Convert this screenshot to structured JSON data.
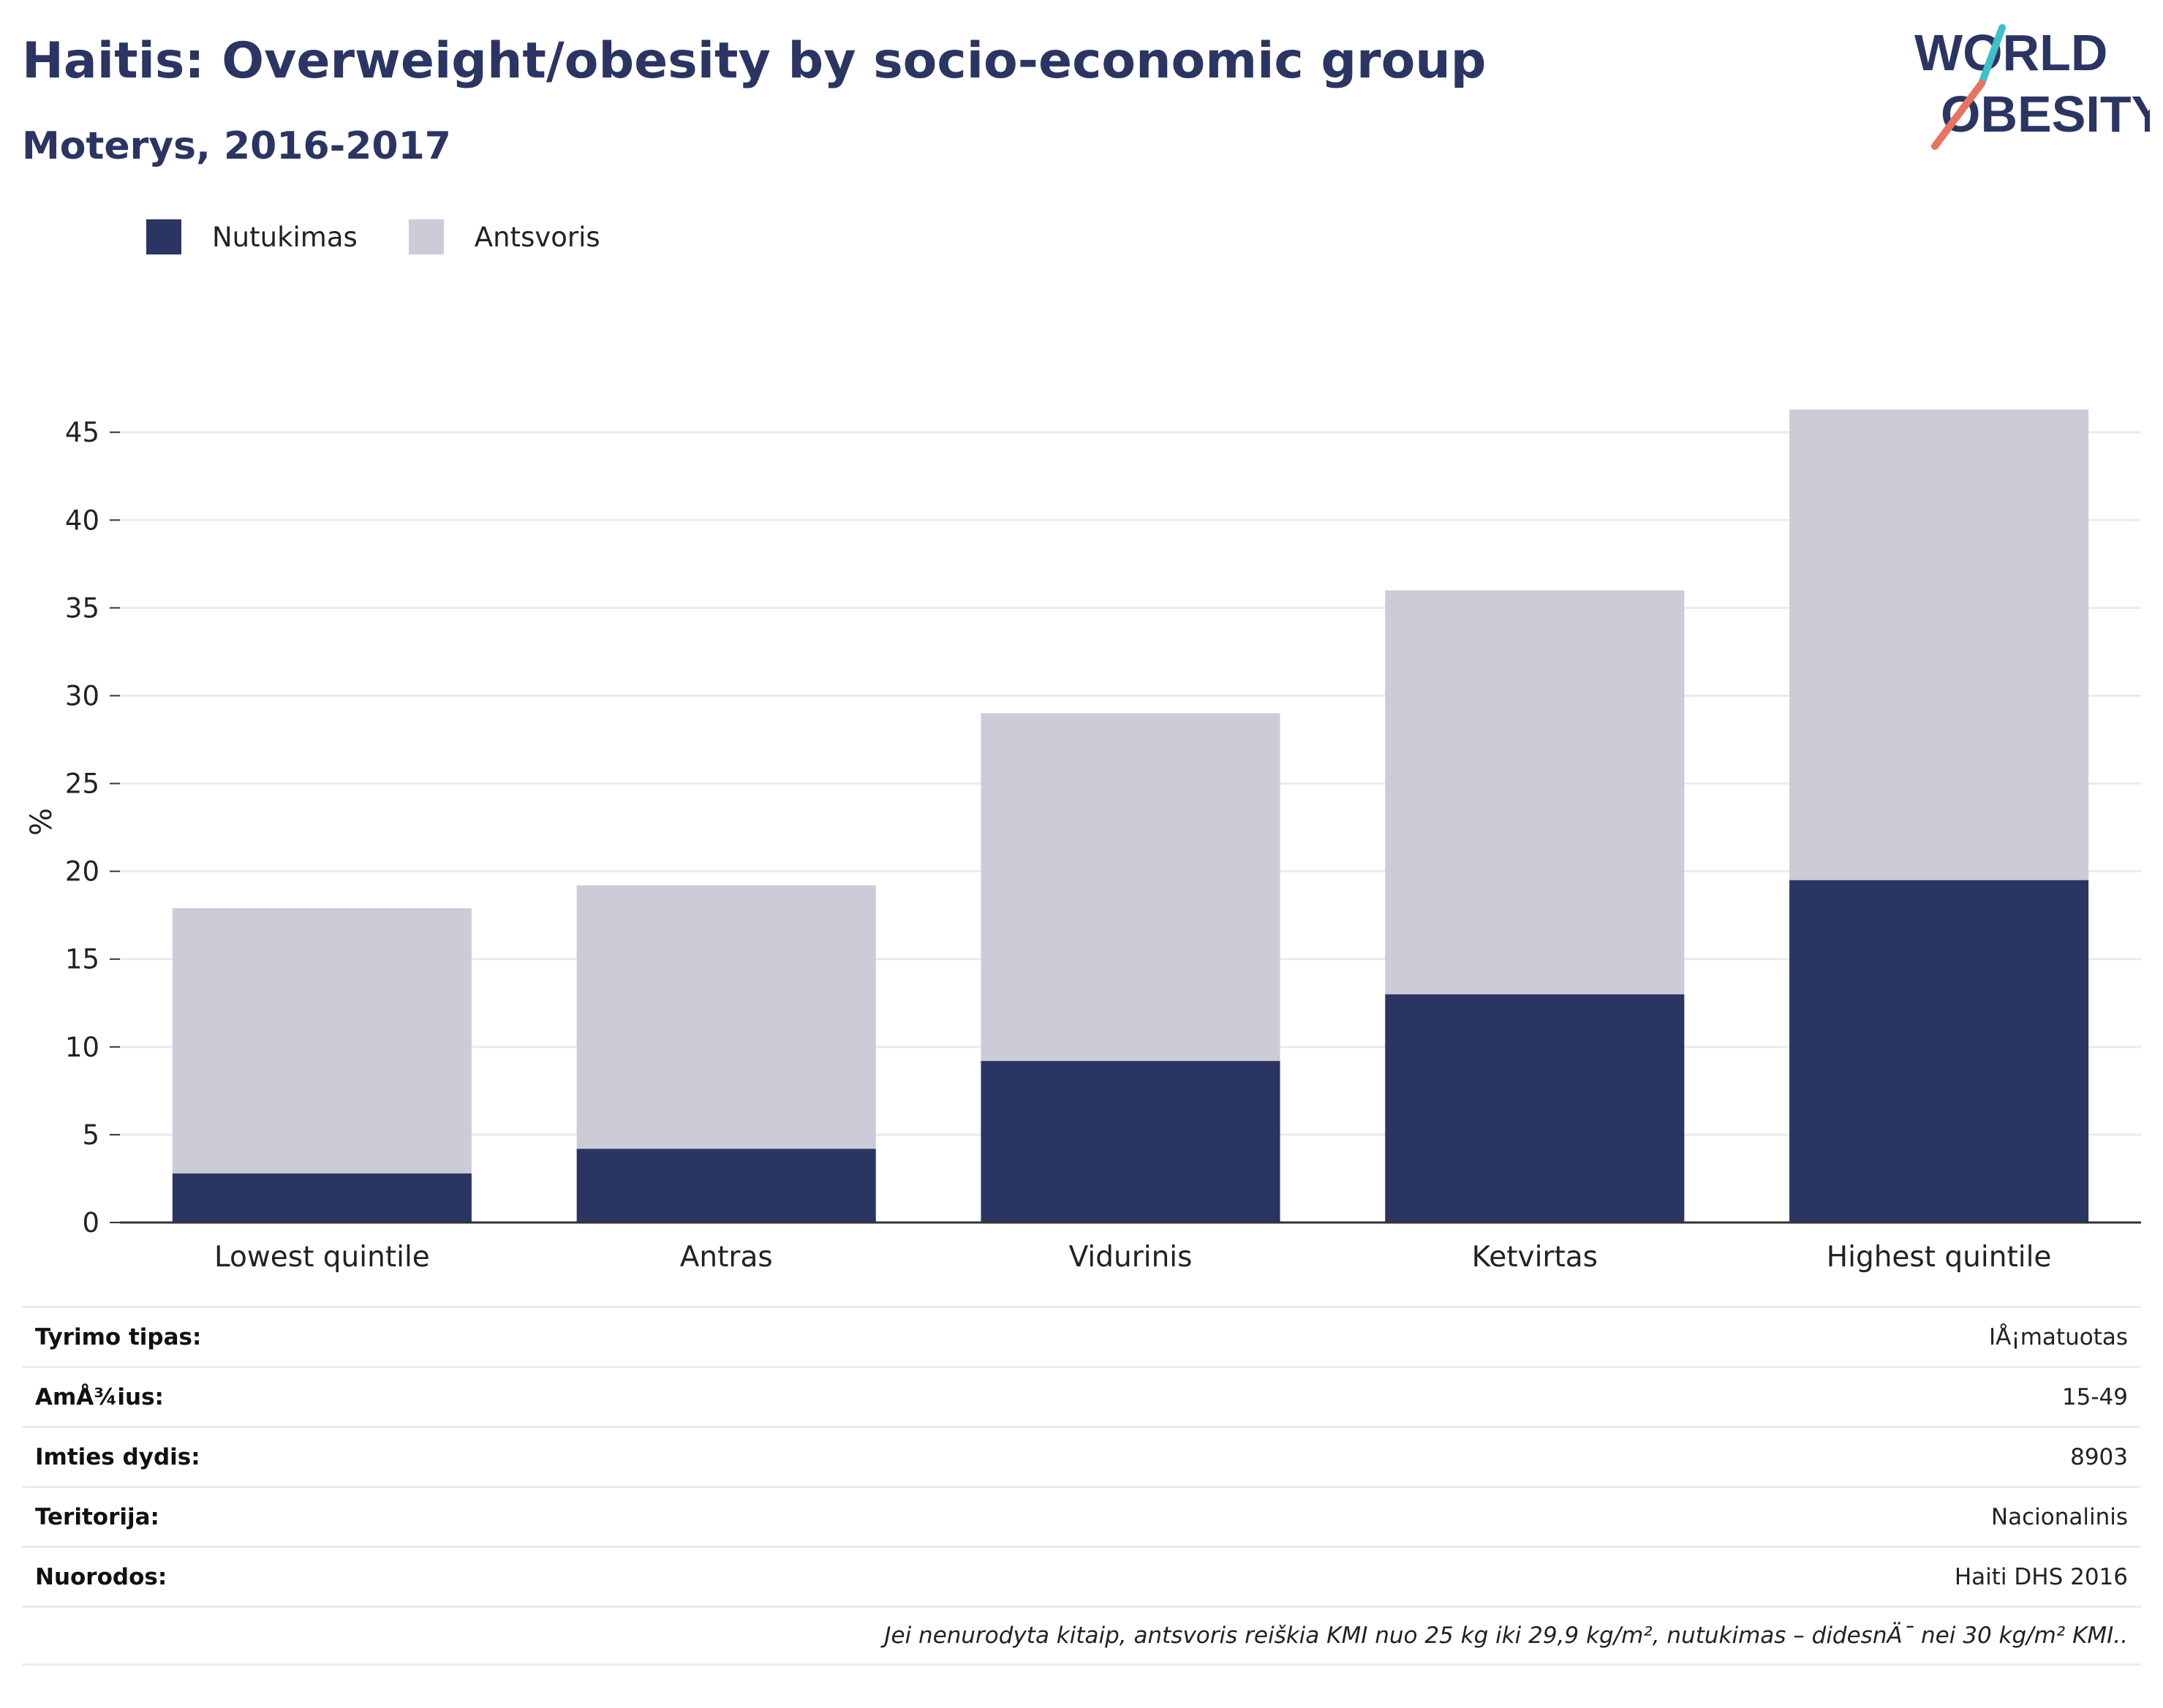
{
  "title": "Haitis: Overweight/obesity by socio-economic group",
  "subtitle": "Moterys, 2016-2017",
  "logo": {
    "line1": "WORLD",
    "line2": "OBESITY",
    "accent_teal": "#3fbfc8",
    "accent_coral": "#e8735f"
  },
  "colors": {
    "nutukimas": "#2b3563",
    "antsvoris": "#cbccd7",
    "grid": "#e8ecef",
    "axis": "#333333"
  },
  "chart_data": {
    "type": "bar",
    "stacked": true,
    "categories": [
      "Lowest quintile",
      "Antras",
      "Vidurinis",
      "Ketvirtas",
      "Highest quintile"
    ],
    "series": [
      {
        "name": "Nutukimas",
        "values": [
          2.8,
          4.2,
          9.2,
          13.0,
          19.5
        ]
      },
      {
        "name": "Antsvoris",
        "values": [
          15.1,
          15.0,
          19.8,
          23.0,
          26.8
        ]
      }
    ],
    "ylabel": "%",
    "ylim": [
      0,
      46.3
    ],
    "yticks": [
      0,
      5,
      10,
      15,
      20,
      25,
      30,
      35,
      40,
      45
    ],
    "grid": true,
    "legend_position": "top-left"
  },
  "info": [
    {
      "label": "Tyrimo tipas:",
      "value": "IÅ¡matuotas"
    },
    {
      "label": "AmÅ¾ius:",
      "value": "15-49"
    },
    {
      "label": "Imties dydis:",
      "value": "8903"
    },
    {
      "label": "Teritorija:",
      "value": "Nacionalinis"
    },
    {
      "label": "Nuorodos:",
      "value": "Haiti DHS 2016"
    }
  ],
  "note": "Jei nenurodyta kitaip, antsvoris reiškia KMI nuo 25 kg iki 29,9 kg/m², nutukimas – didesnÄ¯ nei 30 kg/m² KMI.."
}
